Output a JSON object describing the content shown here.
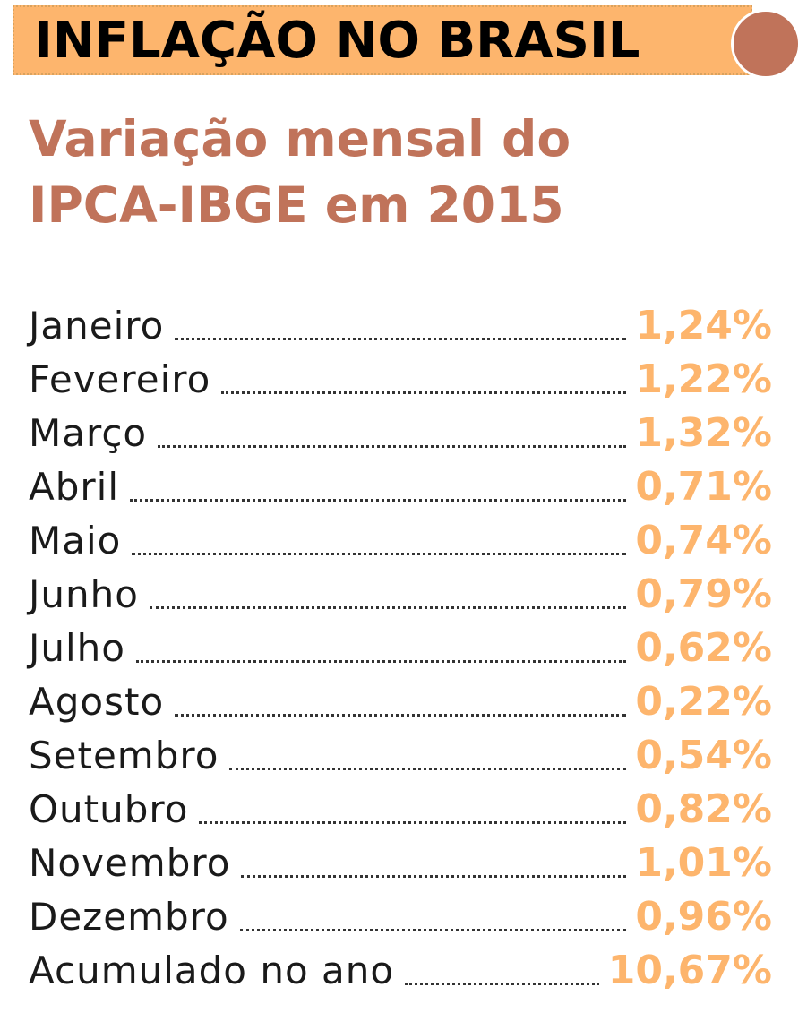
{
  "header": {
    "title": "INFLAÇÃO NO BRASIL"
  },
  "subtitle": {
    "line1": "Variação mensal do",
    "line2": "IPCA-IBGE em 2015"
  },
  "colors": {
    "banner": "#fdb56d",
    "accent": "#c0735a",
    "value": "#fdb56d",
    "label": "#1a1a1a"
  },
  "chart_data": {
    "type": "table",
    "title": "Variação mensal do IPCA-IBGE em 2015",
    "rows": [
      {
        "label": "Janeiro",
        "value": "1,24%"
      },
      {
        "label": "Fevereiro",
        "value": "1,22%"
      },
      {
        "label": "Março",
        "value": "1,32%"
      },
      {
        "label": "Abril",
        "value": "0,71%"
      },
      {
        "label": "Maio",
        "value": "0,74%"
      },
      {
        "label": "Junho",
        "value": "0,79%"
      },
      {
        "label": "Julho",
        "value": "0,62%"
      },
      {
        "label": "Agosto",
        "value": "0,22%"
      },
      {
        "label": "Setembro",
        "value": "0,54%"
      },
      {
        "label": "Outubro",
        "value": "0,82%"
      },
      {
        "label": "Novembro",
        "value": "1,01%"
      },
      {
        "label": "Dezembro",
        "value": "0,96%"
      },
      {
        "label": "Acumulado no ano",
        "value": "10,67%"
      }
    ]
  }
}
